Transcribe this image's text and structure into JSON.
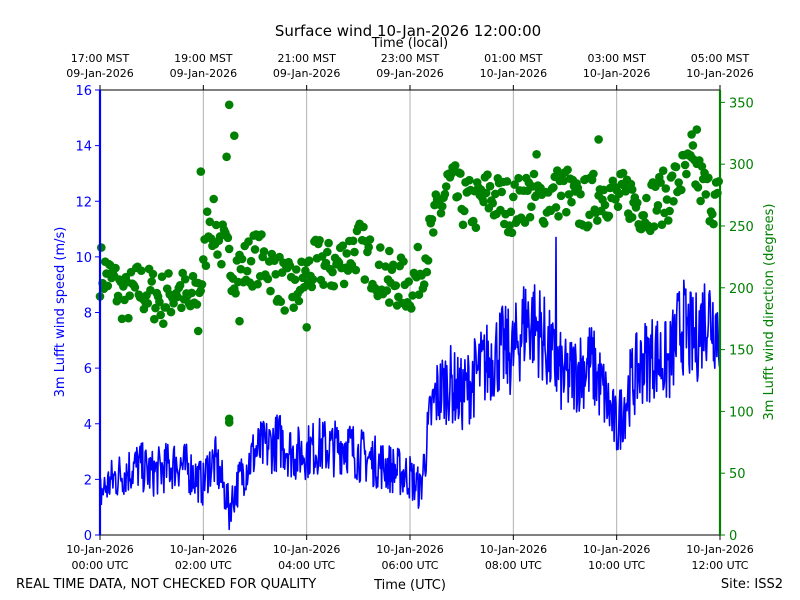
{
  "chart_data": {
    "type": "scatter+line",
    "title": "Surface wind 10-Jan-2026 12:00:00",
    "xlabel_bottom": "Time (UTC)",
    "xlabel_top": "Time (local)",
    "ylabel_left": "3m Lufft wind speed (m/s)",
    "ylabel_right": "3m Lufft wind direction (degrees)",
    "x_range_hours_utc": [
      0,
      12
    ],
    "ylim_left": [
      0,
      16
    ],
    "ylim_right": [
      0,
      360
    ],
    "yticks_left": [
      0,
      2,
      4,
      6,
      8,
      10,
      12,
      14,
      16
    ],
    "yticks_right": [
      0,
      50,
      100,
      150,
      200,
      250,
      300,
      350
    ],
    "bottom_ticks": [
      {
        "hour": 0,
        "line1": "10-Jan-2026",
        "line2": "00:00 UTC"
      },
      {
        "hour": 2,
        "line1": "10-Jan-2026",
        "line2": "02:00 UTC"
      },
      {
        "hour": 4,
        "line1": "10-Jan-2026",
        "line2": "04:00 UTC"
      },
      {
        "hour": 6,
        "line1": "10-Jan-2026",
        "line2": "06:00 UTC"
      },
      {
        "hour": 8,
        "line1": "10-Jan-2026",
        "line2": "08:00 UTC"
      },
      {
        "hour": 10,
        "line1": "10-Jan-2026",
        "line2": "10:00 UTC"
      },
      {
        "hour": 12,
        "line1": "10-Jan-2026",
        "line2": "12:00 UTC"
      }
    ],
    "top_ticks": [
      {
        "hour": 0,
        "line1": "17:00 MST",
        "line2": "09-Jan-2026"
      },
      {
        "hour": 2,
        "line1": "19:00 MST",
        "line2": "09-Jan-2026"
      },
      {
        "hour": 4,
        "line1": "21:00 MST",
        "line2": "09-Jan-2026"
      },
      {
        "hour": 6,
        "line1": "23:00 MST",
        "line2": "09-Jan-2026"
      },
      {
        "hour": 8,
        "line1": "01:00 MST",
        "line2": "10-Jan-2026"
      },
      {
        "hour": 10,
        "line1": "03:00 MST",
        "line2": "10-Jan-2026"
      },
      {
        "hour": 12,
        "line1": "05:00 MST",
        "line2": "10-Jan-2026"
      }
    ],
    "series": [
      {
        "name": "3m Lufft wind speed (m/s)",
        "kind": "line",
        "axis": "left",
        "color": "#0000ff",
        "x_hours": [
          0,
          0.25,
          0.5,
          0.75,
          1,
          1.25,
          1.5,
          1.75,
          2,
          2.1,
          2.25,
          2.5,
          2.75,
          3,
          3.25,
          3.5,
          3.75,
          4,
          4.25,
          4.5,
          4.75,
          5,
          5.25,
          5.5,
          5.75,
          6,
          6.2,
          6.4,
          6.5,
          6.75,
          7,
          7.25,
          7.5,
          7.75,
          8,
          8.25,
          8.5,
          8.75,
          9,
          9.25,
          9.5,
          9.75,
          10,
          10.25,
          10.5,
          10.75,
          11,
          11.25,
          11.5,
          11.75,
          12
        ],
        "values": [
          1.5,
          2.0,
          2.3,
          2.5,
          2.2,
          2.4,
          2.6,
          2.3,
          1.8,
          2.5,
          2.6,
          1.0,
          2.2,
          3.0,
          3.2,
          3.4,
          2.9,
          3.0,
          3.2,
          3.1,
          3.3,
          2.9,
          2.7,
          2.5,
          2.3,
          2.1,
          1.6,
          4.3,
          5.0,
          5.5,
          5.0,
          5.7,
          6.2,
          6.7,
          6.5,
          7.8,
          7.4,
          6.3,
          5.6,
          5.9,
          6.2,
          5.1,
          3.8,
          5.3,
          6.2,
          6.5,
          6.1,
          7.6,
          6.9,
          8.1,
          7.4
        ],
        "extremes": {
          "peak": 10.7,
          "peak_hour": 8.83,
          "low": 0.2,
          "low_hour": 2.5
        }
      },
      {
        "name": "3m Lufft wind direction (degrees)",
        "kind": "scatter",
        "axis": "right",
        "color": "#008000",
        "x_hours": [
          0,
          0.25,
          0.5,
          0.75,
          1,
          1.25,
          1.5,
          1.75,
          2,
          2.1,
          2.25,
          2.5,
          2.75,
          3,
          3.25,
          3.5,
          3.75,
          4,
          4.25,
          4.5,
          4.75,
          5,
          5.25,
          5.5,
          5.75,
          6,
          6.2,
          6.4,
          6.5,
          6.75,
          7,
          7.25,
          7.5,
          7.75,
          8,
          8.25,
          8.5,
          8.75,
          9,
          9.25,
          9.5,
          9.75,
          10,
          10.25,
          10.5,
          10.75,
          11,
          11.25,
          11.5,
          11.75,
          12
        ],
        "values": [
          215,
          205,
          190,
          200,
          195,
          190,
          200,
          185,
          210,
          260,
          245,
          220,
          215,
          225,
          220,
          205,
          195,
          210,
          220,
          215,
          225,
          235,
          220,
          210,
          205,
          200,
          215,
          240,
          255,
          285,
          270,
          265,
          275,
          270,
          265,
          275,
          270,
          275,
          280,
          265,
          270,
          280,
          270,
          275,
          265,
          270,
          275,
          290,
          295,
          275,
          270
        ],
        "outliers": [
          {
            "hour": 2.5,
            "value": 348
          },
          {
            "hour": 2.6,
            "value": 323
          },
          {
            "hour": 2.45,
            "value": 306
          },
          {
            "hour": 2.5,
            "value": 94
          },
          {
            "hour": 2.5,
            "value": 91
          },
          {
            "hour": 2.7,
            "value": 173
          },
          {
            "hour": 1.9,
            "value": 165
          },
          {
            "hour": 1.95,
            "value": 294
          },
          {
            "hour": 4.0,
            "value": 168
          },
          {
            "hour": 5.6,
            "value": 188
          },
          {
            "hour": 9.65,
            "value": 320
          },
          {
            "hour": 11.55,
            "value": 328
          },
          {
            "hour": 11.45,
            "value": 324
          },
          {
            "hour": 8.45,
            "value": 308
          },
          {
            "hour": 10.3,
            "value": 257
          }
        ]
      }
    ]
  },
  "footer": {
    "left_note": "REAL TIME DATA, NOT CHECKED FOR QUALITY",
    "site": "Site: ISS2"
  },
  "colors": {
    "speed": "#0000ff",
    "direction": "#008000",
    "grid": "#b0b0b0",
    "frame": "#000000"
  }
}
